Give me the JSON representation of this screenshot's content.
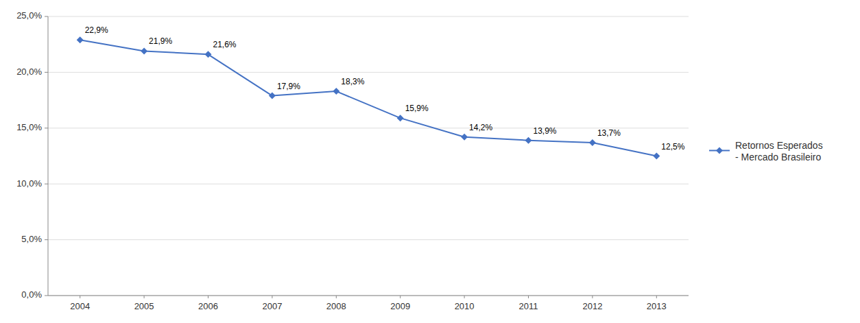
{
  "chart_data": {
    "type": "line",
    "x": [
      2004,
      2005,
      2006,
      2007,
      2008,
      2009,
      2010,
      2011,
      2012,
      2013
    ],
    "xlim": [
      2003.5,
      2013.5
    ],
    "xticks": [
      2004,
      2005,
      2006,
      2007,
      2008,
      2009,
      2010,
      2011,
      2012,
      2013
    ],
    "ylim": [
      0.0,
      0.25
    ],
    "yticks": [
      {
        "value": 0.0,
        "label": "0,0%"
      },
      {
        "value": 0.05,
        "label": "5,0%"
      },
      {
        "value": 0.1,
        "label": "10,0%"
      },
      {
        "value": 0.15,
        "label": "15,0%"
      },
      {
        "value": 0.2,
        "label": "20,0%"
      },
      {
        "value": 0.25,
        "label": "25,0%"
      }
    ],
    "grid": true,
    "legend": "right",
    "data_labels": true,
    "series": [
      {
        "name": "Retornos Esperados\n- Mercado Brasileiro",
        "color": "#4472C4",
        "marker": "diamond",
        "values": [
          0.229,
          0.219,
          0.216,
          0.179,
          0.183,
          0.159,
          0.142,
          0.139,
          0.137,
          0.125
        ],
        "value_labels": [
          "22,9%",
          "21,9%",
          "21,6%",
          "17,9%",
          "18,3%",
          "15,9%",
          "14,2%",
          "13,9%",
          "13,7%",
          "12,5%"
        ]
      }
    ]
  }
}
